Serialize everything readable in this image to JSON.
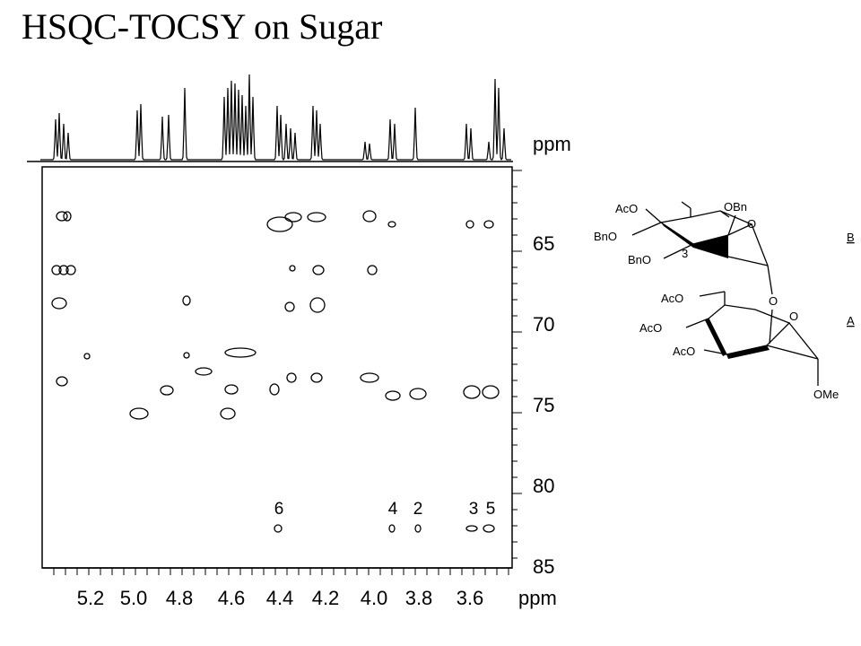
{
  "title": "HSQC-TOCSY on Sugar",
  "axes": {
    "x": {
      "unit": "ppm",
      "ticks": [
        "5.2",
        "5.0",
        "4.8",
        "4.6",
        "4.4",
        "4.2",
        "4.0",
        "3.8",
        "3.6"
      ]
    },
    "y": {
      "unit": "ppm",
      "ticks": [
        "65",
        "70",
        "75",
        "80",
        "85"
      ]
    }
  },
  "peak_labels": [
    "6",
    "4",
    "2",
    "3",
    "5"
  ],
  "molecule": {
    "substituents": [
      "AcO",
      "OBn",
      "O",
      "BnO",
      "3",
      "BnO",
      "AcO",
      "O",
      "O",
      "AcO",
      "AcO",
      "OMe"
    ],
    "ring_labels": [
      "B",
      "A"
    ]
  }
}
